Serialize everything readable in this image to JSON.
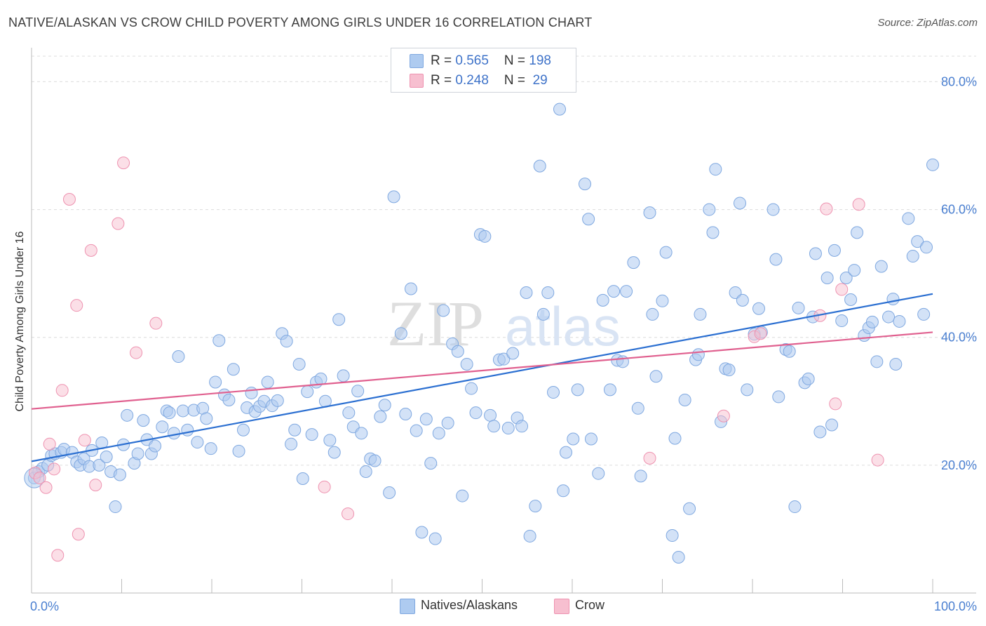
{
  "title": "NATIVE/ALASKAN VS CROW CHILD POVERTY AMONG GIRLS UNDER 16 CORRELATION CHART",
  "source": "Source: ZipAtlas.com",
  "watermark": {
    "zip": "ZIP",
    "atlas": "atlas"
  },
  "legend": {
    "row1": {
      "r_label": "R = ",
      "r_value": "0.565",
      "n_label": "N = ",
      "n_value": "198"
    },
    "row2": {
      "r_label": "R = ",
      "r_value": "0.248",
      "n_label": "N = ",
      "n_value": " 29"
    }
  },
  "bottom_legend": {
    "series1": "Natives/Alaskans",
    "series2": "Crow"
  },
  "colors": {
    "blue_fill": "#aecbf0",
    "blue_stroke": "#7fa8e0",
    "blue_line": "#2b6fd1",
    "pink_fill": "#f7bfd0",
    "pink_stroke": "#ee92b0",
    "pink_line": "#e0608f",
    "tick_text": "#4a7fd0"
  },
  "chart_data": {
    "type": "scatter",
    "title": "NATIVE/ALASKAN VS CROW CHILD POVERTY AMONG GIRLS UNDER 16 CORRELATION CHART",
    "xlabel": "",
    "ylabel": "Child Poverty Among Girls Under 16",
    "xlim": [
      0,
      100
    ],
    "ylim": [
      0,
      80
    ],
    "x_tick_labels": [
      "0.0%",
      "100.0%"
    ],
    "y_ticks": [
      20,
      40,
      60,
      80
    ],
    "y_tick_labels": [
      "20.0%",
      "40.0%",
      "60.0%",
      "80.0%"
    ],
    "grid": "dashed horizontal",
    "legend_position": "top-center",
    "series": [
      {
        "name": "Natives/Alaskans",
        "r": 0.565,
        "n": 198,
        "trend": {
          "x": [
            0,
            100
          ],
          "y": [
            20.6,
            46.8
          ]
        },
        "points": [
          [
            0.3,
            18.0
          ],
          [
            0.8,
            19.0
          ],
          [
            1.2,
            19.5
          ],
          [
            1.8,
            20.0
          ],
          [
            2.2,
            21.5
          ],
          [
            2.6,
            21.8
          ],
          [
            3.3,
            22.0
          ],
          [
            3.6,
            22.5
          ],
          [
            4.5,
            22.0
          ],
          [
            5.0,
            20.5
          ],
          [
            5.4,
            20.0
          ],
          [
            5.8,
            21.0
          ],
          [
            6.4,
            19.8
          ],
          [
            6.7,
            22.3
          ],
          [
            7.5,
            20.0
          ],
          [
            7.8,
            23.5
          ],
          [
            8.3,
            21.3
          ],
          [
            8.8,
            19.0
          ],
          [
            9.3,
            13.5
          ],
          [
            9.8,
            18.5
          ],
          [
            10.2,
            23.2
          ],
          [
            10.6,
            27.8
          ],
          [
            11.4,
            20.3
          ],
          [
            11.8,
            21.8
          ],
          [
            12.4,
            27.0
          ],
          [
            12.8,
            24.0
          ],
          [
            13.3,
            21.8
          ],
          [
            13.7,
            23.0
          ],
          [
            14.5,
            26.0
          ],
          [
            15.0,
            28.5
          ],
          [
            15.3,
            28.2
          ],
          [
            15.8,
            25.0
          ],
          [
            16.3,
            37.0
          ],
          [
            16.8,
            28.5
          ],
          [
            17.3,
            25.5
          ],
          [
            18.0,
            28.6
          ],
          [
            18.4,
            23.6
          ],
          [
            19.0,
            28.9
          ],
          [
            19.4,
            27.3
          ],
          [
            19.9,
            22.6
          ],
          [
            20.4,
            33.0
          ],
          [
            20.8,
            39.5
          ],
          [
            21.4,
            31.0
          ],
          [
            21.9,
            30.2
          ],
          [
            22.4,
            35.0
          ],
          [
            23.0,
            22.2
          ],
          [
            23.5,
            25.5
          ],
          [
            23.9,
            29.0
          ],
          [
            24.4,
            31.3
          ],
          [
            24.8,
            28.4
          ],
          [
            25.3,
            29.2
          ],
          [
            25.8,
            30.0
          ],
          [
            26.2,
            33.0
          ],
          [
            26.7,
            29.3
          ],
          [
            27.3,
            30.1
          ],
          [
            27.8,
            40.6
          ],
          [
            28.3,
            39.4
          ],
          [
            28.8,
            23.3
          ],
          [
            29.2,
            25.5
          ],
          [
            29.7,
            35.8
          ],
          [
            30.1,
            17.9
          ],
          [
            30.6,
            31.5
          ],
          [
            31.1,
            24.8
          ],
          [
            31.6,
            33.0
          ],
          [
            32.1,
            33.5
          ],
          [
            32.6,
            30.0
          ],
          [
            33.1,
            23.9
          ],
          [
            33.6,
            22.0
          ],
          [
            34.1,
            42.8
          ],
          [
            34.6,
            34.0
          ],
          [
            35.2,
            28.2
          ],
          [
            35.7,
            26.0
          ],
          [
            36.2,
            31.6
          ],
          [
            36.6,
            25.0
          ],
          [
            37.1,
            19.0
          ],
          [
            37.6,
            21.0
          ],
          [
            38.1,
            20.7
          ],
          [
            38.7,
            27.6
          ],
          [
            39.2,
            29.4
          ],
          [
            39.7,
            15.7
          ],
          [
            40.2,
            62.0
          ],
          [
            41.0,
            40.6
          ],
          [
            41.5,
            28.0
          ],
          [
            42.1,
            47.6
          ],
          [
            42.7,
            25.4
          ],
          [
            43.3,
            9.5
          ],
          [
            43.8,
            27.2
          ],
          [
            44.3,
            20.3
          ],
          [
            44.8,
            8.5
          ],
          [
            45.2,
            25.0
          ],
          [
            45.7,
            44.2
          ],
          [
            46.2,
            26.6
          ],
          [
            46.7,
            39.0
          ],
          [
            47.3,
            37.8
          ],
          [
            47.8,
            15.2
          ],
          [
            48.3,
            35.8
          ],
          [
            48.8,
            32.0
          ],
          [
            49.3,
            28.2
          ],
          [
            49.8,
            56.1
          ],
          [
            50.3,
            55.8
          ],
          [
            50.9,
            27.8
          ],
          [
            51.3,
            26.1
          ],
          [
            51.9,
            36.5
          ],
          [
            52.4,
            36.6
          ],
          [
            52.9,
            25.8
          ],
          [
            53.4,
            37.5
          ],
          [
            53.9,
            27.4
          ],
          [
            54.4,
            26.1
          ],
          [
            54.9,
            47.0
          ],
          [
            55.3,
            8.9
          ],
          [
            55.9,
            13.6
          ],
          [
            56.4,
            66.8
          ],
          [
            56.8,
            43.6
          ],
          [
            57.3,
            47.0
          ],
          [
            57.9,
            31.4
          ],
          [
            58.6,
            75.7
          ],
          [
            59.0,
            16.0
          ],
          [
            59.3,
            22.0
          ],
          [
            60.1,
            24.1
          ],
          [
            60.6,
            31.8
          ],
          [
            61.4,
            64.0
          ],
          [
            61.8,
            58.5
          ],
          [
            62.1,
            24.1
          ],
          [
            62.9,
            18.7
          ],
          [
            63.4,
            45.8
          ],
          [
            64.2,
            31.8
          ],
          [
            64.6,
            47.2
          ],
          [
            65.0,
            36.4
          ],
          [
            65.6,
            36.2
          ],
          [
            66.0,
            47.2
          ],
          [
            66.8,
            51.7
          ],
          [
            67.3,
            28.9
          ],
          [
            67.6,
            18.3
          ],
          [
            68.6,
            59.5
          ],
          [
            68.9,
            43.6
          ],
          [
            69.3,
            33.9
          ],
          [
            70.0,
            45.7
          ],
          [
            70.4,
            53.3
          ],
          [
            71.1,
            9.0
          ],
          [
            71.4,
            24.2
          ],
          [
            71.8,
            5.6
          ],
          [
            72.5,
            30.2
          ],
          [
            73.0,
            13.2
          ],
          [
            73.7,
            36.5
          ],
          [
            74.0,
            37.3
          ],
          [
            74.2,
            43.6
          ],
          [
            75.2,
            60.0
          ],
          [
            75.6,
            56.4
          ],
          [
            75.9,
            66.3
          ],
          [
            76.5,
            26.8
          ],
          [
            77.0,
            35.1
          ],
          [
            77.4,
            34.9
          ],
          [
            78.1,
            47.0
          ],
          [
            78.6,
            61.0
          ],
          [
            78.9,
            45.8
          ],
          [
            79.4,
            31.8
          ],
          [
            80.2,
            40.5
          ],
          [
            80.7,
            44.5
          ],
          [
            81.0,
            40.8
          ],
          [
            82.3,
            60.0
          ],
          [
            82.6,
            52.2
          ],
          [
            82.9,
            30.7
          ],
          [
            83.7,
            38.1
          ],
          [
            84.1,
            37.8
          ],
          [
            84.7,
            13.5
          ],
          [
            85.1,
            44.6
          ],
          [
            85.8,
            32.9
          ],
          [
            86.2,
            33.5
          ],
          [
            86.7,
            43.2
          ],
          [
            87.0,
            53.1
          ],
          [
            87.5,
            25.2
          ],
          [
            88.3,
            49.3
          ],
          [
            88.8,
            26.3
          ],
          [
            89.1,
            53.6
          ],
          [
            89.9,
            42.6
          ],
          [
            90.4,
            49.3
          ],
          [
            90.9,
            45.9
          ],
          [
            91.3,
            50.5
          ],
          [
            91.6,
            56.4
          ],
          [
            92.4,
            40.3
          ],
          [
            92.9,
            41.5
          ],
          [
            93.3,
            42.4
          ],
          [
            93.8,
            36.2
          ],
          [
            94.3,
            51.1
          ],
          [
            95.1,
            43.2
          ],
          [
            95.6,
            46.0
          ],
          [
            95.9,
            35.8
          ],
          [
            96.3,
            42.5
          ],
          [
            97.3,
            58.6
          ],
          [
            97.8,
            52.7
          ],
          [
            98.3,
            55.0
          ],
          [
            99.0,
            43.6
          ],
          [
            99.3,
            54.1
          ],
          [
            100.0,
            67.0
          ]
        ]
      },
      {
        "name": "Crow",
        "r": 0.248,
        "n": 29,
        "trend": {
          "x": [
            0,
            100
          ],
          "y": [
            28.8,
            40.8
          ]
        },
        "points": [
          [
            0.4,
            18.8
          ],
          [
            0.9,
            18.0
          ],
          [
            1.6,
            16.5
          ],
          [
            2.0,
            23.3
          ],
          [
            2.5,
            19.4
          ],
          [
            2.9,
            5.9
          ],
          [
            3.4,
            31.7
          ],
          [
            4.2,
            61.6
          ],
          [
            5.0,
            45.0
          ],
          [
            5.2,
            9.2
          ],
          [
            5.9,
            23.9
          ],
          [
            6.6,
            53.6
          ],
          [
            7.1,
            16.9
          ],
          [
            9.6,
            57.8
          ],
          [
            10.2,
            67.3
          ],
          [
            11.6,
            37.6
          ],
          [
            13.8,
            42.2
          ],
          [
            32.5,
            16.6
          ],
          [
            35.1,
            12.4
          ],
          [
            68.6,
            21.1
          ],
          [
            76.8,
            27.7
          ],
          [
            80.2,
            40.1
          ],
          [
            80.9,
            40.6
          ],
          [
            87.5,
            43.4
          ],
          [
            88.2,
            60.1
          ],
          [
            89.2,
            29.6
          ],
          [
            89.9,
            47.5
          ],
          [
            91.8,
            60.8
          ],
          [
            93.9,
            20.8
          ]
        ]
      }
    ]
  }
}
